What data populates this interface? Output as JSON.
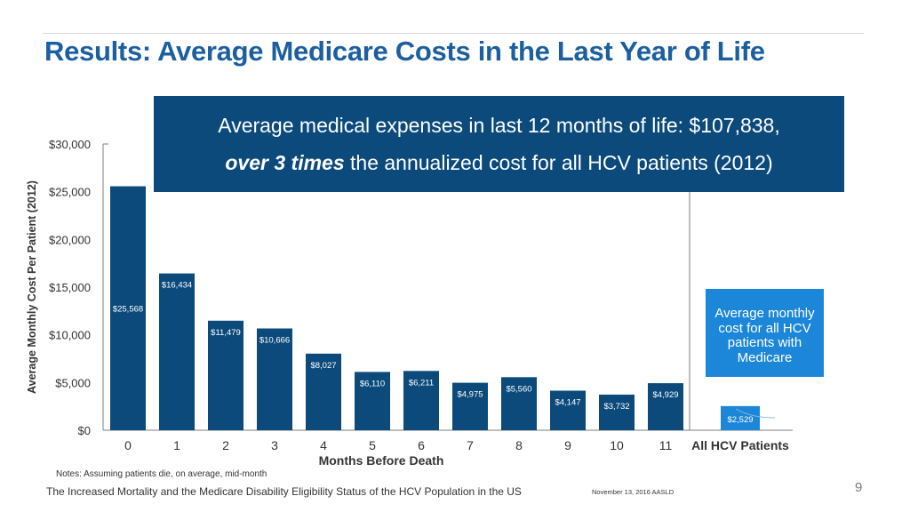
{
  "title": "Results: Average Medicare Costs in the Last Year of Life",
  "callout": {
    "line1": "Average medical expenses in last 12 months of life: $107,838,",
    "emphasis": "over 3 times",
    "line2_rest": " the annualized cost for all HCV patients (2012)"
  },
  "side_box": {
    "lines": [
      "Average monthly",
      "cost for all HCV",
      "patients with",
      "Medicare"
    ]
  },
  "notes": "Notes: Assuming patients die, on average, mid-month",
  "footer": {
    "left": "The Increased Mortality and the Medicare Disability Eligibility Status of the HCV Population in the US",
    "date": "November 13, 2016  AASLD",
    "page": "9"
  },
  "chart_data": {
    "type": "bar",
    "title": "",
    "xlabel": "Months Before Death",
    "ylabel": "Average Monthly Cost Per Patient (2012)",
    "ylim": [
      0,
      30000
    ],
    "yticks": [
      0,
      5000,
      10000,
      15000,
      20000,
      25000,
      30000
    ],
    "ytick_labels": [
      "$0",
      "$5,000",
      "$10,000",
      "$15,000",
      "$20,000",
      "$25,000",
      "$30,000"
    ],
    "categories": [
      "0",
      "1",
      "2",
      "3",
      "4",
      "5",
      "6",
      "7",
      "8",
      "9",
      "10",
      "11"
    ],
    "values": [
      25568,
      16434,
      11479,
      10666,
      8027,
      6110,
      6211,
      4975,
      5560,
      4147,
      3732,
      4929
    ],
    "value_labels": [
      "$25,568",
      "$16,434",
      "$11,479",
      "$10,666",
      "$8,027",
      "$6,110",
      "$6,211",
      "$4,975",
      "$5,560",
      "$4,147",
      "$3,732",
      "$4,929"
    ],
    "comparison": {
      "category": "All HCV Patients",
      "value": 2529,
      "value_label": "$2,529"
    },
    "colors": {
      "bar": "#0b4a7b",
      "comparison_bar": "#1c86d8",
      "axis": "#7f7f7f",
      "axis_text": "#333333"
    }
  }
}
